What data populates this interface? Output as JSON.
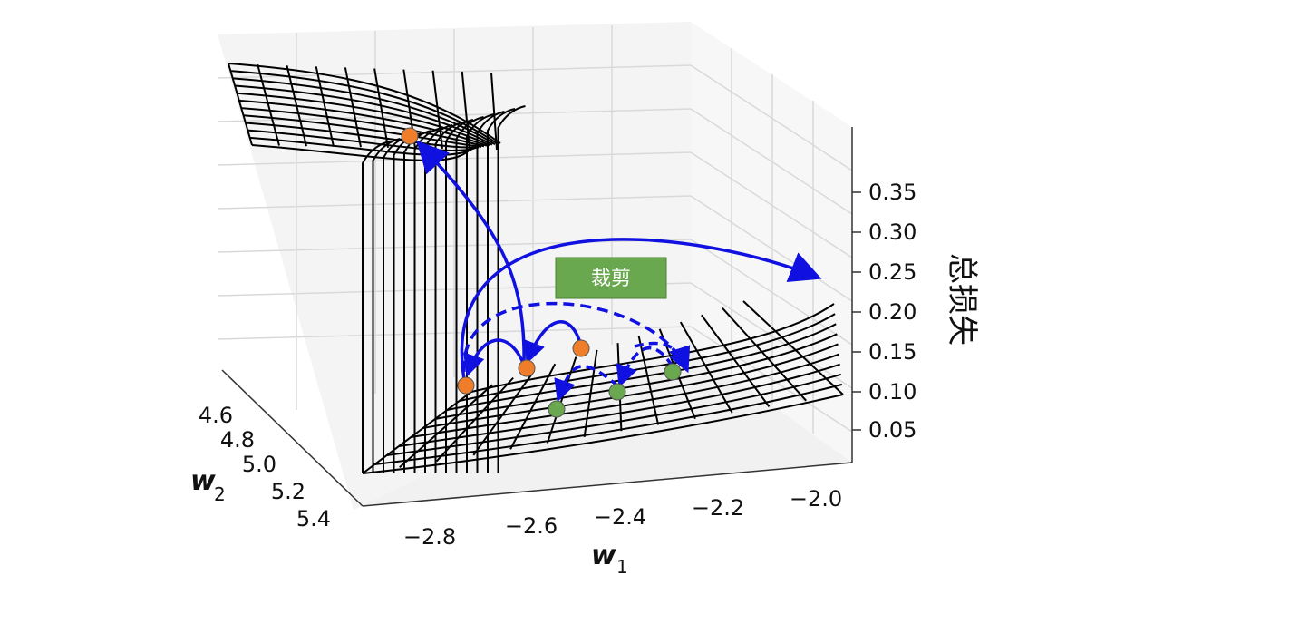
{
  "chart_data": {
    "type": "surface",
    "axes": {
      "x": {
        "label": "w",
        "subscript": "1",
        "ticks": [
          "−2.8",
          "−2.6",
          "−2.4",
          "−2.2",
          "−2.0"
        ]
      },
      "y": {
        "label": "w",
        "subscript": "2",
        "ticks": [
          "4.6",
          "4.8",
          "5.0",
          "5.2",
          "5.4"
        ]
      },
      "z": {
        "label": "总损失",
        "ticks": [
          "0.05",
          "0.10",
          "0.15",
          "0.20",
          "0.25",
          "0.30",
          "0.35"
        ]
      }
    },
    "annotation": {
      "label": "裁剪",
      "color": "#6aa84f"
    },
    "colors": {
      "arrow": "#1010e0",
      "point_orange": "#f07d2a",
      "point_green": "#6aa84f",
      "mesh": "#000000",
      "grid": "#d9d9d9"
    }
  }
}
